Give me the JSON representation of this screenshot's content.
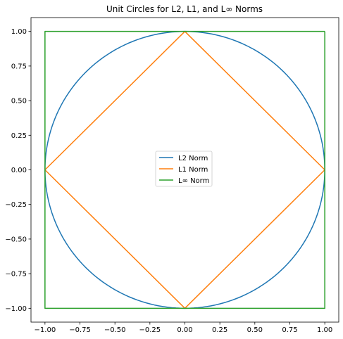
{
  "chart_data": {
    "type": "line",
    "title": "Unit Circles for L2, L1, and L∞ Norms",
    "xlabel": "",
    "ylabel": "",
    "xlim": [
      -1.1,
      1.1
    ],
    "ylim": [
      -1.1,
      1.1
    ],
    "xticks": [
      -1.0,
      -0.75,
      -0.5,
      -0.25,
      0.0,
      0.25,
      0.5,
      0.75,
      1.0
    ],
    "xtick_labels": [
      "−1.00",
      "−0.75",
      "−0.50",
      "−0.25",
      "0.00",
      "0.25",
      "0.50",
      "0.75",
      "1.00"
    ],
    "yticks": [
      1.0,
      0.75,
      0.5,
      0.25,
      0.0,
      -0.25,
      -0.5,
      -0.75,
      -1.0
    ],
    "ytick_labels": [
      "1.00",
      "0.75",
      "0.50",
      "0.25",
      "0.00",
      "−0.25",
      "−0.50",
      "−0.75",
      "−1.00"
    ],
    "grid": false,
    "legend_position": "center",
    "series": [
      {
        "name": "L2 Norm",
        "color": "#1f77b4",
        "shape": "circle",
        "radius": 1.0,
        "center": [
          0,
          0
        ]
      },
      {
        "name": "L1 Norm",
        "color": "#ff7f0e",
        "x": [
          1,
          0,
          -1,
          0,
          1
        ],
        "y": [
          0,
          1,
          0,
          -1,
          0
        ]
      },
      {
        "name": "L∞ Norm",
        "color": "#2ca02c",
        "x": [
          1,
          -1,
          -1,
          1,
          1
        ],
        "y": [
          1,
          1,
          -1,
          -1,
          1
        ]
      }
    ]
  }
}
